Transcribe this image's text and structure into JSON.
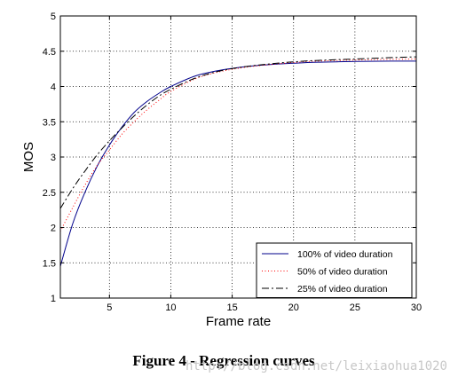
{
  "chart_data": {
    "type": "line",
    "xlabel": "Frame rate",
    "ylabel": "MOS",
    "xlim": [
      1,
      30
    ],
    "ylim": [
      1,
      5
    ],
    "xticks": [
      5,
      10,
      15,
      20,
      25,
      30
    ],
    "yticks": [
      1,
      1.5,
      2,
      2.5,
      3,
      3.5,
      4,
      4.5,
      5
    ],
    "grid": true,
    "legend_position": "bottom-right",
    "series": [
      {
        "name": "100% of video duration",
        "color": "#00008b",
        "style": "solid",
        "x": [
          1,
          2,
          3,
          4,
          5,
          6,
          7,
          8,
          9,
          10,
          12,
          14,
          16,
          18,
          20,
          22,
          25,
          28,
          30
        ],
        "y": [
          1.45,
          2.05,
          2.5,
          2.87,
          3.17,
          3.42,
          3.63,
          3.78,
          3.9,
          4.0,
          4.15,
          4.23,
          4.28,
          4.31,
          4.33,
          4.345,
          4.355,
          4.36,
          4.36
        ]
      },
      {
        "name": "50% of video duration",
        "color": "#ff0000",
        "style": "dotted",
        "x": [
          1,
          2,
          3,
          4,
          5,
          6,
          7,
          8,
          9,
          10,
          12,
          14,
          16,
          18,
          20,
          22,
          25,
          28,
          30
        ],
        "y": [
          1.95,
          2.28,
          2.6,
          2.88,
          3.1,
          3.32,
          3.5,
          3.66,
          3.8,
          3.93,
          4.11,
          4.21,
          4.27,
          4.31,
          4.34,
          4.36,
          4.375,
          4.385,
          4.39
        ]
      },
      {
        "name": "25% of video duration",
        "color": "#000000",
        "style": "dashdot",
        "x": [
          1,
          2,
          3,
          4,
          5,
          6,
          7,
          8,
          9,
          10,
          12,
          14,
          16,
          18,
          20,
          22,
          25,
          28,
          30
        ],
        "y": [
          2.27,
          2.55,
          2.8,
          3.03,
          3.23,
          3.41,
          3.58,
          3.73,
          3.86,
          3.96,
          4.12,
          4.22,
          4.28,
          4.32,
          4.35,
          4.37,
          4.39,
          4.41,
          4.42
        ]
      }
    ]
  },
  "caption": "Figure 4 - Regression curves",
  "watermark": "http://blog.csdn.net/leixiaohua1020"
}
